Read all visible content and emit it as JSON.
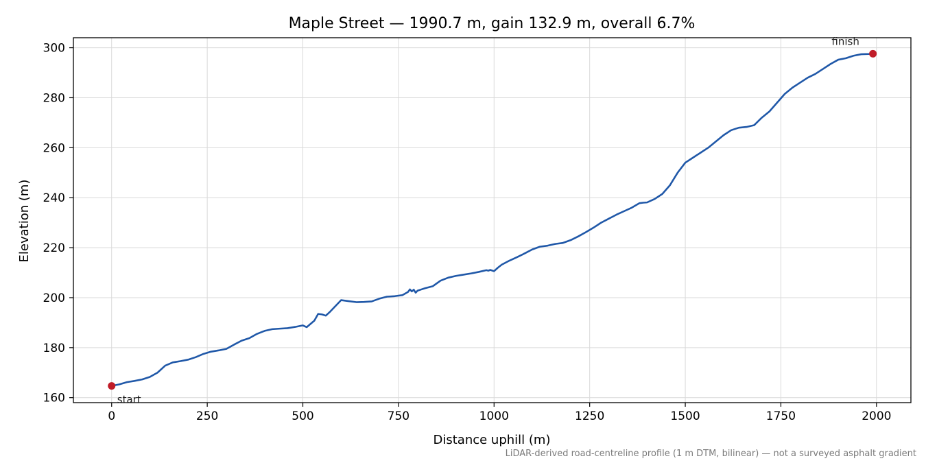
{
  "chart_data": {
    "type": "line",
    "title": "Maple Street — 1990.7 m, gain 132.9 m, overall 6.7%",
    "xlabel": "Distance uphill (m)",
    "ylabel": "Elevation (m)",
    "xlim": [
      -100,
      2090
    ],
    "ylim": [
      158,
      304
    ],
    "xticks": [
      0,
      250,
      500,
      750,
      1000,
      1250,
      1500,
      1750,
      2000
    ],
    "yticks": [
      160,
      180,
      200,
      220,
      240,
      260,
      280,
      300
    ],
    "grid": true,
    "line_color": "#2058a8",
    "marker_color": "#c01c28",
    "series": [
      {
        "x": [
          0,
          20,
          40,
          60,
          80,
          100,
          120,
          140,
          160,
          180,
          200,
          220,
          240,
          260,
          280,
          300,
          320,
          340,
          360,
          380,
          400,
          420,
          440,
          460,
          480,
          500,
          510,
          520,
          530,
          540,
          550,
          560,
          570,
          580,
          600,
          620,
          640,
          660,
          680,
          700,
          720,
          740,
          760,
          775,
          780,
          785,
          790,
          795,
          800,
          810,
          820,
          840,
          860,
          880,
          900,
          920,
          940,
          960,
          980,
          985,
          990,
          1000,
          1010,
          1020,
          1040,
          1060,
          1080,
          1100,
          1120,
          1140,
          1160,
          1180,
          1200,
          1220,
          1240,
          1260,
          1280,
          1300,
          1320,
          1340,
          1360,
          1380,
          1390,
          1400,
          1420,
          1440,
          1460,
          1480,
          1500,
          1520,
          1540,
          1560,
          1580,
          1600,
          1620,
          1640,
          1660,
          1680,
          1700,
          1720,
          1740,
          1760,
          1780,
          1800,
          1820,
          1840,
          1860,
          1880,
          1900,
          1920,
          1940,
          1960,
          1980,
          1990.7
        ],
        "y": [
          164.7,
          165.3,
          166.2,
          166.7,
          167.3,
          168.3,
          170.0,
          172.8,
          174.1,
          174.6,
          175.2,
          176.2,
          177.5,
          178.4,
          178.9,
          179.5,
          181.2,
          182.8,
          183.8,
          185.5,
          186.7,
          187.4,
          187.6,
          187.8,
          188.3,
          188.9,
          188.2,
          189.5,
          190.8,
          193.5,
          193.3,
          192.8,
          194.2,
          195.8,
          199.0,
          198.6,
          198.2,
          198.3,
          198.5,
          199.6,
          200.4,
          200.6,
          201.0,
          202.3,
          203.3,
          202.5,
          203.2,
          202.0,
          202.8,
          203.3,
          203.8,
          204.6,
          206.8,
          208.0,
          208.7,
          209.2,
          209.7,
          210.3,
          211.0,
          210.8,
          211.1,
          210.6,
          212.0,
          213.2,
          214.8,
          216.2,
          217.7,
          219.3,
          220.4,
          220.8,
          221.5,
          221.9,
          223.0,
          224.5,
          226.2,
          228.0,
          230.0,
          231.6,
          233.2,
          234.6,
          236.0,
          237.8,
          238.0,
          238.1,
          239.5,
          241.5,
          245.0,
          250.0,
          254.0,
          256.0,
          258.0,
          260.0,
          262.5,
          265.0,
          267.0,
          268.0,
          268.3,
          269.0,
          272.0,
          274.5,
          278.0,
          281.5,
          284.0,
          286.0,
          288.0,
          289.5,
          291.5,
          293.5,
          295.2,
          295.8,
          296.8,
          297.4,
          297.5,
          297.6
        ]
      }
    ],
    "annotations": {
      "start_label": "start",
      "finish_label": "finish"
    },
    "footnote": "LiDAR-derived road-centreline profile (1 m DTM, bilinear) — not a surveyed asphalt gradient"
  }
}
